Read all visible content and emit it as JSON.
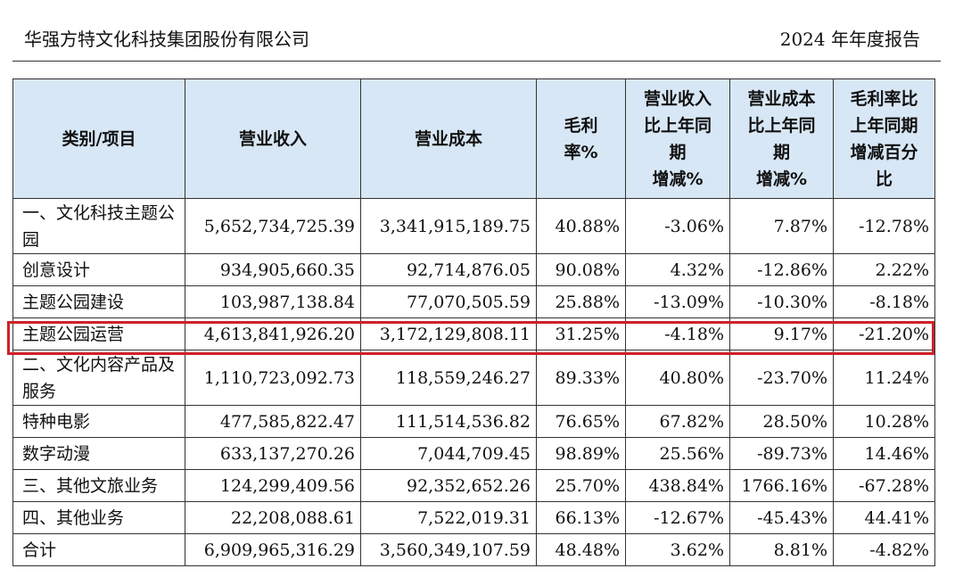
{
  "header": {
    "company": "华强方特文化科技集团股份有限公司",
    "report": "2024 年年度报告"
  },
  "table": {
    "columns": [
      "类别/项目",
      "营业收入",
      "营业成本",
      "毛利\n率%",
      "营业收入\n比上年同\n期\n增减%",
      "营业成本\n比上年同\n期\n增减%",
      "毛利率比\n上年同期\n增减百分\n比"
    ],
    "rows": [
      {
        "category": "一、文化科技主题公园",
        "revenue": "5,652,734,725.39",
        "cost": "3,341,915,189.75",
        "margin": "40.88%",
        "rev_change": "-3.06%",
        "cost_change": "7.87%",
        "margin_change": "-12.78%"
      },
      {
        "category": "创意设计",
        "revenue": "934,905,660.35",
        "cost": "92,714,876.05",
        "margin": "90.08%",
        "rev_change": "4.32%",
        "cost_change": "-12.86%",
        "margin_change": "2.22%"
      },
      {
        "category": "主题公园建设",
        "revenue": "103,987,138.84",
        "cost": "77,070,505.59",
        "margin": "25.88%",
        "rev_change": "-13.09%",
        "cost_change": "-10.30%",
        "margin_change": "-8.18%"
      },
      {
        "category": "主题公园运营",
        "revenue": "4,613,841,926.20",
        "cost": "3,172,129,808.11",
        "margin": "31.25%",
        "rev_change": "-4.18%",
        "cost_change": "9.17%",
        "margin_change": "-21.20%"
      },
      {
        "category": "二、文化内容产品及服务",
        "revenue": "1,110,723,092.73",
        "cost": "118,559,246.27",
        "margin": "89.33%",
        "rev_change": "40.80%",
        "cost_change": "-23.70%",
        "margin_change": "11.24%"
      },
      {
        "category": "特种电影",
        "revenue": "477,585,822.47",
        "cost": "111,514,536.82",
        "margin": "76.65%",
        "rev_change": "67.82%",
        "cost_change": "28.50%",
        "margin_change": "10.28%"
      },
      {
        "category": "数字动漫",
        "revenue": "633,137,270.26",
        "cost": "7,044,709.45",
        "margin": "98.89%",
        "rev_change": "25.56%",
        "cost_change": "-89.73%",
        "margin_change": "14.46%"
      },
      {
        "category": "三、其他文旅业务",
        "revenue": "124,299,409.56",
        "cost": "92,352,652.26",
        "margin": "25.70%",
        "rev_change": "438.84%",
        "cost_change": "1766.16%",
        "margin_change": "-67.28%"
      },
      {
        "category": "四、其他业务",
        "revenue": "22,208,088.61",
        "cost": "7,522,019.31",
        "margin": "66.13%",
        "rev_change": "-12.67%",
        "cost_change": "-45.43%",
        "margin_change": "44.41%"
      },
      {
        "category": "合计",
        "revenue": "6,909,965,316.29",
        "cost": "3,560,349,107.59",
        "margin": "48.48%",
        "rev_change": "3.62%",
        "cost_change": "8.81%",
        "margin_change": "-4.82%"
      }
    ]
  },
  "highlight": {
    "color": "#d0202a",
    "row_category": "主题公园运营"
  },
  "colors": {
    "header_bg": "#d8e7f5",
    "border": "#333333"
  }
}
